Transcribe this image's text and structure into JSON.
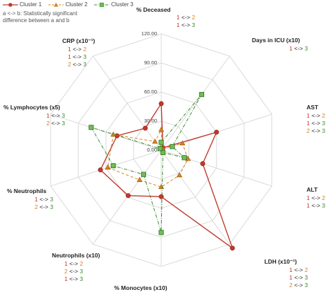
{
  "chart_data": {
    "type": "radar",
    "legend_position": "top-left",
    "grid": true,
    "rlim": [
      0,
      120
    ],
    "ticks": [
      "0.00",
      "30.00",
      "60.00",
      "90.00",
      "120.00"
    ],
    "axes": [
      {
        "label": "% Deceased",
        "comparisons": [
          [
            "1",
            "2"
          ],
          [
            "1",
            "3"
          ]
        ]
      },
      {
        "label": "Days in ICU (x10)",
        "comparisons": [
          [
            "1",
            "3"
          ]
        ]
      },
      {
        "label": "AST",
        "comparisons": [
          [
            "1",
            "2"
          ],
          [
            "1",
            "3"
          ],
          [
            "2",
            "3"
          ]
        ]
      },
      {
        "label": "ALT",
        "comparisons": [
          [
            "1",
            "2"
          ],
          [
            "1",
            "3"
          ]
        ]
      },
      {
        "label": "LDH (x10⁻¹)",
        "comparisons": [
          [
            "1",
            "2"
          ],
          [
            "1",
            "3"
          ],
          [
            "2",
            "3"
          ]
        ]
      },
      {
        "label": "% Monocytes (x10)",
        "comparisons": []
      },
      {
        "label": "Neutrophils (x10)",
        "comparisons": [
          [
            "1",
            "2"
          ],
          [
            "2",
            "3"
          ],
          [
            "1",
            "3"
          ]
        ]
      },
      {
        "label": "% Neutrophils",
        "comparisons": [
          [
            "1",
            "3"
          ],
          [
            "2",
            "3"
          ]
        ]
      },
      {
        "label": "% Lymphocytes (x5)",
        "comparisons": [
          [
            "1",
            "3"
          ],
          [
            "2",
            "3"
          ]
        ]
      },
      {
        "label": "CRP (x10⁻¹)",
        "comparisons": [
          [
            "1",
            "2"
          ],
          [
            "1",
            "3"
          ],
          [
            "2",
            "3"
          ]
        ]
      }
    ],
    "series": [
      {
        "name": "Cluster 1",
        "color": "#c0392b",
        "marker": "circle",
        "dash": "solid",
        "values": [
          48,
          3,
          60,
          45,
          125,
          48,
          58,
          66,
          48,
          28
        ]
      },
      {
        "name": "Cluster 2",
        "color": "#d4821e",
        "marker": "triangle",
        "dash": "dash",
        "values": [
          21,
          2,
          23,
          29,
          32,
          38,
          38,
          58,
          52,
          11
        ]
      },
      {
        "name": "Cluster 3",
        "color": "#3a8a2a",
        "marker": "square",
        "dash": "dashdot",
        "values": [
          8,
          71,
          12,
          25,
          3,
          85,
          31,
          52,
          76,
          2
        ]
      }
    ]
  },
  "note_lines": [
    "a <-> b: Statistically significant",
    "difference between a and b"
  ]
}
